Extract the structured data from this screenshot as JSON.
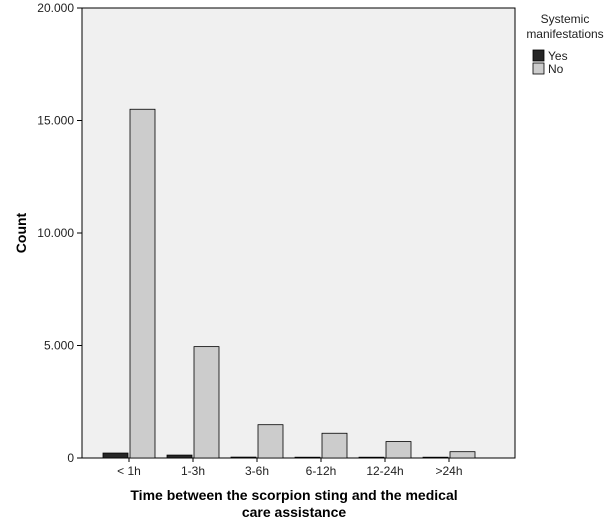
{
  "chart_data": {
    "type": "bar",
    "categories": [
      "< 1h",
      "1-3h",
      "3-6h",
      "6-12h",
      "12-24h",
      ">24h"
    ],
    "series": [
      {
        "name": "Yes",
        "values": [
          220,
          130,
          40,
          15,
          10,
          5
        ],
        "color": "#262626"
      },
      {
        "name": "No",
        "values": [
          15500,
          4950,
          1480,
          1100,
          730,
          280
        ],
        "color": "#cccccc"
      }
    ],
    "xlabel_lines": [
      "Time between the scorpion sting and the medical",
      "care assistance"
    ],
    "ylabel": "Count",
    "ylim": [
      0,
      20000
    ],
    "yticks": [
      0,
      5000,
      10000,
      15000,
      20000
    ],
    "ytick_labels": [
      "0",
      "5.000",
      "10.000",
      "15.000",
      "20.000"
    ],
    "legend": {
      "title_lines": [
        "Systemic",
        "manifestations"
      ],
      "placement": "right"
    },
    "plot_background": "#f0f0f0",
    "grid": false
  }
}
